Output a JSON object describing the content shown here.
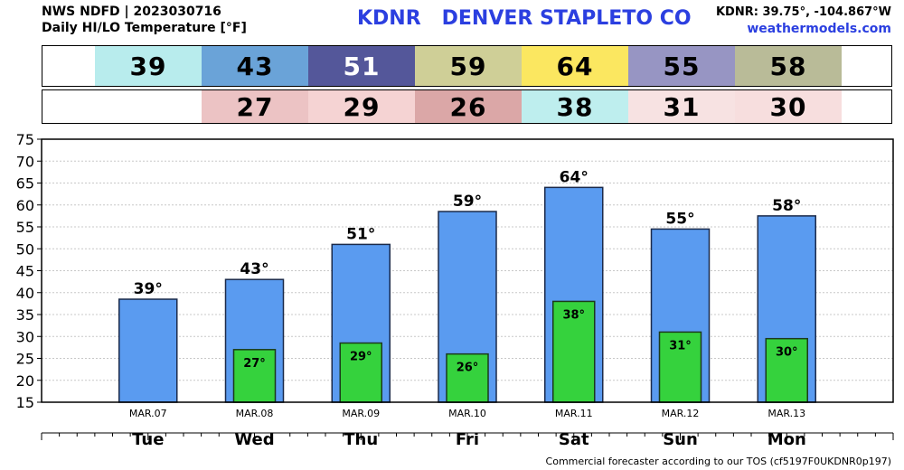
{
  "header": {
    "line1": "NWS NDFD | 2023030716",
    "line2": "Daily HI/LO Temperature [°F]",
    "station_title": "KDNR   DENVER STAPLETO CO",
    "coords": "KDNR: 39.75°, -104.867°W",
    "site": "weathermodels.com"
  },
  "footer": "Commercial forecaster according to our TOS (cf5197F0UKDNR0p197)",
  "strips": {
    "hi": [
      {
        "value": "39",
        "color": "#b8eced",
        "text_color": "#000000"
      },
      {
        "value": "43",
        "color": "#6aa3d8",
        "text_color": "#000000"
      },
      {
        "value": "51",
        "color": "#54579a",
        "text_color": "#ffffff"
      },
      {
        "value": "59",
        "color": "#cfcf97",
        "text_color": "#000000"
      },
      {
        "value": "64",
        "color": "#fbe760",
        "text_color": "#000000"
      },
      {
        "value": "55",
        "color": "#9795c3",
        "text_color": "#000000"
      },
      {
        "value": "58",
        "color": "#b9bb98",
        "text_color": "#000000"
      }
    ],
    "lo": [
      {
        "value": "",
        "color": "#ffffff",
        "text_color": "#000000"
      },
      {
        "value": "27",
        "color": "#ecc3c4",
        "text_color": "#000000"
      },
      {
        "value": "29",
        "color": "#f5d3d3",
        "text_color": "#000000"
      },
      {
        "value": "26",
        "color": "#dba7a7",
        "text_color": "#000000"
      },
      {
        "value": "38",
        "color": "#beeeee",
        "text_color": "#000000"
      },
      {
        "value": "31",
        "color": "#f7e2e2",
        "text_color": "#000000"
      },
      {
        "value": "30",
        "color": "#f7dede",
        "text_color": "#000000"
      }
    ]
  },
  "chart_data": {
    "type": "bar",
    "categories": [
      "MAR.07",
      "MAR.08",
      "MAR.09",
      "MAR.10",
      "MAR.11",
      "MAR.12",
      "MAR.13"
    ],
    "day_labels": [
      "Tue",
      "Wed",
      "Thu",
      "Fri",
      "Sat",
      "Sun",
      "Mon"
    ],
    "series": [
      {
        "values": [
          38.5,
          43,
          51,
          58.5,
          64,
          54.5,
          57.5
        ],
        "labels": [
          "39°",
          "43°",
          "51°",
          "59°",
          "64°",
          "55°",
          "58°"
        ],
        "color": "#5a9bf0"
      },
      {
        "values": [
          null,
          27,
          28.5,
          26,
          38,
          31,
          29.5
        ],
        "labels": [
          "",
          "27°",
          "29°",
          "26°",
          "38°",
          "31°",
          "30°"
        ],
        "color": "#35d23d"
      }
    ],
    "ylim": [
      15,
      75
    ],
    "yticks": [
      15,
      20,
      25,
      30,
      35,
      40,
      45,
      50,
      55,
      60,
      65,
      70,
      75
    ],
    "grid": true
  }
}
